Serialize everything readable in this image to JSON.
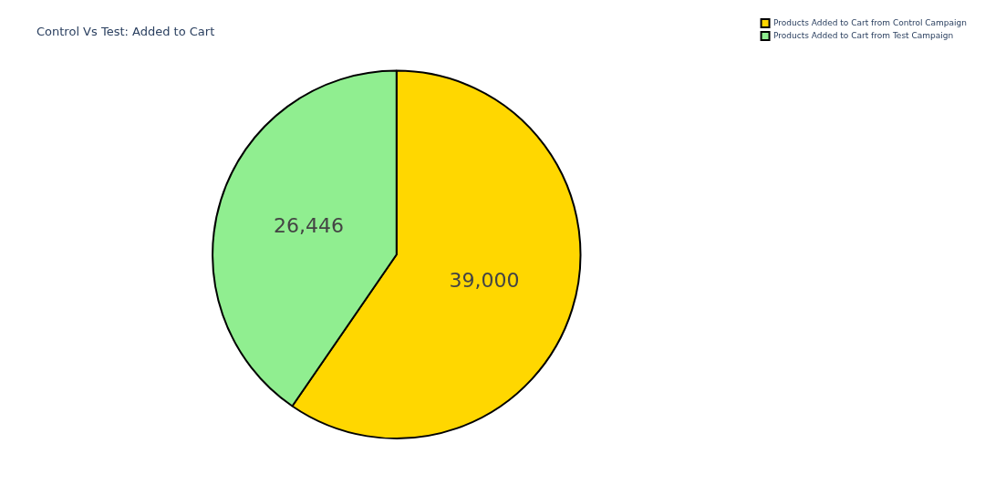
{
  "chart_data": {
    "type": "pie",
    "title": "Control Vs Test: Added to Cart",
    "categories": [
      "Products Added to Cart from Control Campaign",
      "Products Added to Cart from Test Campaign"
    ],
    "values": [
      39000,
      26446
    ],
    "colors": [
      "#ffd700",
      "#90ee90"
    ],
    "value_labels": [
      "39,000",
      "26,446"
    ],
    "legend": "top right"
  }
}
